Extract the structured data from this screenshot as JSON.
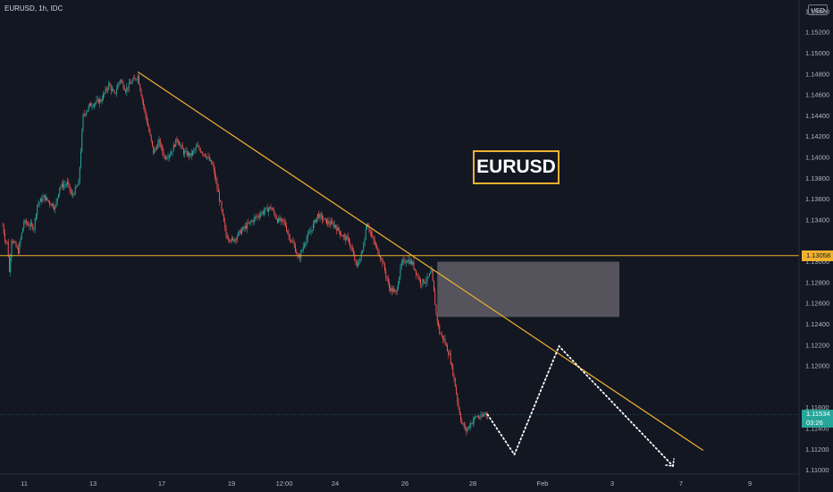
{
  "header": {
    "symbol_line": "EURUSD, 1h, IDC",
    "currency_button": "USD",
    "chart_label": "EURUSD"
  },
  "colors": {
    "background": "#131722",
    "bull_candle": "#26a69a",
    "bear_candle": "#ef5350",
    "trendline": "#f0b12f",
    "level_line": "#f0b12f",
    "zone_fill": "#5d5b63",
    "projection": "#ffffff",
    "current_price": "#26a69a"
  },
  "price_tags": {
    "level_label": "1.13058",
    "current_label": "1.11534",
    "countdown": "03:26"
  },
  "chart_data": {
    "type": "candlestick",
    "title": "EURUSD",
    "x_tick_labels": [
      "11",
      "13",
      "17",
      "19",
      "12:00",
      "24",
      "26",
      "28",
      "Feb",
      "3",
      "7",
      "9"
    ],
    "y_tick_labels": [
      "1.11000",
      "1.11200",
      "1.11400",
      "1.11600",
      "1.12000",
      "1.12200",
      "1.12400",
      "1.12600",
      "1.12800",
      "1.13000",
      "1.13400",
      "1.13600",
      "1.13800",
      "1.14000",
      "1.14200",
      "1.14400",
      "1.14600",
      "1.14800",
      "1.15000",
      "1.15200",
      "1.15400"
    ],
    "ylim": [
      1.1098,
      1.1545
    ],
    "grid": false,
    "price_path": [
      {
        "slot": 0,
        "price": 1.1335
      },
      {
        "slot": 2,
        "price": 1.1322
      },
      {
        "slot": 4,
        "price": 1.1318
      },
      {
        "slot": 5,
        "price": 1.1306
      },
      {
        "slot": 6,
        "price": 1.129
      },
      {
        "slot": 8,
        "price": 1.1322
      },
      {
        "slot": 14,
        "price": 1.131
      },
      {
        "slot": 19,
        "price": 1.1338
      },
      {
        "slot": 28,
        "price": 1.1333
      },
      {
        "slot": 31,
        "price": 1.1355
      },
      {
        "slot": 37,
        "price": 1.1362
      },
      {
        "slot": 47,
        "price": 1.1352
      },
      {
        "slot": 51,
        "price": 1.1372
      },
      {
        "slot": 58,
        "price": 1.1375
      },
      {
        "slot": 62,
        "price": 1.1363
      },
      {
        "slot": 68,
        "price": 1.1375
      },
      {
        "slot": 72,
        "price": 1.144
      },
      {
        "slot": 78,
        "price": 1.145
      },
      {
        "slot": 88,
        "price": 1.1455
      },
      {
        "slot": 95,
        "price": 1.147
      },
      {
        "slot": 100,
        "price": 1.146
      },
      {
        "slot": 105,
        "price": 1.1475
      },
      {
        "slot": 110,
        "price": 1.1465
      },
      {
        "slot": 115,
        "price": 1.1472
      },
      {
        "slot": 121,
        "price": 1.1478
      },
      {
        "slot": 125,
        "price": 1.1455
      },
      {
        "slot": 130,
        "price": 1.143
      },
      {
        "slot": 135,
        "price": 1.1405
      },
      {
        "slot": 140,
        "price": 1.1415
      },
      {
        "slot": 145,
        "price": 1.14
      },
      {
        "slot": 151,
        "price": 1.1405
      },
      {
        "slot": 156,
        "price": 1.1418
      },
      {
        "slot": 162,
        "price": 1.1405
      },
      {
        "slot": 168,
        "price": 1.1402
      },
      {
        "slot": 174,
        "price": 1.141
      },
      {
        "slot": 182,
        "price": 1.1402
      },
      {
        "slot": 188,
        "price": 1.1392
      },
      {
        "slot": 195,
        "price": 1.1355
      },
      {
        "slot": 200,
        "price": 1.1325
      },
      {
        "slot": 206,
        "price": 1.132
      },
      {
        "slot": 212,
        "price": 1.1328
      },
      {
        "slot": 220,
        "price": 1.1336
      },
      {
        "slot": 226,
        "price": 1.1342
      },
      {
        "slot": 233,
        "price": 1.1348
      },
      {
        "slot": 240,
        "price": 1.1352
      },
      {
        "slot": 246,
        "price": 1.134
      },
      {
        "slot": 252,
        "price": 1.1338
      },
      {
        "slot": 256,
        "price": 1.1325
      },
      {
        "slot": 261,
        "price": 1.1315
      },
      {
        "slot": 265,
        "price": 1.1302
      },
      {
        "slot": 270,
        "price": 1.1318
      },
      {
        "slot": 276,
        "price": 1.133
      },
      {
        "slot": 282,
        "price": 1.1345
      },
      {
        "slot": 290,
        "price": 1.1338
      },
      {
        "slot": 297,
        "price": 1.1335
      },
      {
        "slot": 304,
        "price": 1.1325
      },
      {
        "slot": 310,
        "price": 1.132
      },
      {
        "slot": 317,
        "price": 1.1295
      },
      {
        "slot": 322,
        "price": 1.131
      },
      {
        "slot": 326,
        "price": 1.1338
      },
      {
        "slot": 330,
        "price": 1.1325
      },
      {
        "slot": 335,
        "price": 1.1312
      },
      {
        "slot": 340,
        "price": 1.13
      },
      {
        "slot": 346,
        "price": 1.1275
      },
      {
        "slot": 352,
        "price": 1.127
      },
      {
        "slot": 357,
        "price": 1.1298
      },
      {
        "slot": 362,
        "price": 1.1302
      },
      {
        "slot": 367,
        "price": 1.1298
      },
      {
        "slot": 370,
        "price": 1.129
      },
      {
        "slot": 374,
        "price": 1.128
      },
      {
        "slot": 379,
        "price": 1.1282
      },
      {
        "slot": 384,
        "price": 1.129
      },
      {
        "slot": 388,
        "price": 1.125
      },
      {
        "slot": 391,
        "price": 1.1232
      },
      {
        "slot": 395,
        "price": 1.1225
      },
      {
        "slot": 400,
        "price": 1.121
      },
      {
        "slot": 404,
        "price": 1.1188
      },
      {
        "slot": 408,
        "price": 1.116
      },
      {
        "slot": 411,
        "price": 1.1145
      },
      {
        "slot": 415,
        "price": 1.1138
      },
      {
        "slot": 419,
        "price": 1.1145
      },
      {
        "slot": 424,
        "price": 1.1152
      },
      {
        "slot": 428,
        "price": 1.115
      },
      {
        "slot": 432,
        "price": 1.1155
      },
      {
        "slot": 434,
        "price": 1.1153
      }
    ],
    "horizontal_level": 1.13058,
    "current_price": 1.11534,
    "trendline": {
      "from": {
        "slot": 121,
        "price": 1.1482
      },
      "to": {
        "slot": 627,
        "price": 1.1119
      }
    },
    "zone": {
      "from_slot": 389,
      "to_slot": 552,
      "high": 1.13,
      "low": 1.1247
    },
    "projection": [
      {
        "slot": 434,
        "price": 1.11534
      },
      {
        "slot": 458,
        "price": 1.1115
      },
      {
        "slot": 498,
        "price": 1.1219
      },
      {
        "slot": 600,
        "price": 1.1104
      }
    ]
  }
}
